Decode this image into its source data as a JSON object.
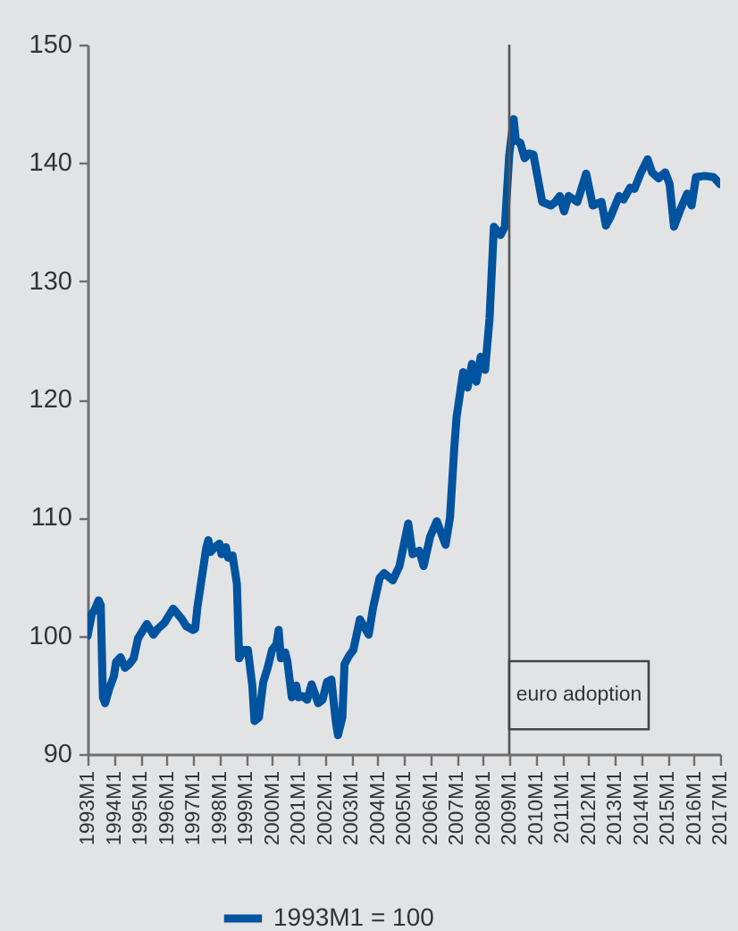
{
  "chart_data": {
    "type": "line",
    "x": [
      "1993-01",
      "1993-03",
      "1993-04",
      "1993-06",
      "1993-07",
      "1993-08",
      "1993-09",
      "1993-11",
      "1994-01",
      "1994-02",
      "1994-04",
      "1994-06",
      "1994-08",
      "1994-10",
      "1994-12",
      "1995-04",
      "1995-07",
      "1995-09",
      "1995-12",
      "1996-04",
      "1996-08",
      "1996-10",
      "1997-01",
      "1997-02",
      "1997-03",
      "1997-05",
      "1997-07",
      "1997-08",
      "1997-09",
      "1997-11",
      "1998-01",
      "1998-02",
      "1998-04",
      "1998-05",
      "1998-07",
      "1998-09",
      "1998-10",
      "1998-12",
      "1999-02",
      "1999-04",
      "1999-05",
      "1999-07",
      "1999-09",
      "1999-11",
      "2000-01",
      "2000-03",
      "2000-04",
      "2000-05",
      "2000-07",
      "2000-08",
      "2000-10",
      "2000-12",
      "2001-01",
      "2001-03",
      "2001-05",
      "2001-07",
      "2001-10",
      "2001-12",
      "2002-02",
      "2002-04",
      "2002-06",
      "2002-07",
      "2002-09",
      "2002-10",
      "2002-12",
      "2003-02",
      "2003-05",
      "2003-09",
      "2003-11",
      "2004-02",
      "2004-04",
      "2004-08",
      "2004-11",
      "2005-03",
      "2005-05",
      "2005-08",
      "2005-10",
      "2006-01",
      "2006-04",
      "2006-08",
      "2006-10",
      "2006-11",
      "2006-12",
      "2007-01",
      "2007-04",
      "2007-06",
      "2007-08",
      "2007-10",
      "2007-12",
      "2008-02",
      "2008-04",
      "2008-06",
      "2008-09",
      "2008-11",
      "2009-01",
      "2009-03",
      "2009-04",
      "2009-06",
      "2009-08",
      "2009-10",
      "2009-12",
      "2010-02",
      "2010-04",
      "2010-08",
      "2010-10",
      "2010-12",
      "2011-02",
      "2011-04",
      "2011-08",
      "2011-12",
      "2012-03",
      "2012-07",
      "2012-09",
      "2012-11",
      "2013-03",
      "2013-05",
      "2013-08",
      "2013-10",
      "2014-01",
      "2014-04",
      "2014-06",
      "2014-09",
      "2014-12",
      "2015-02",
      "2015-04",
      "2015-07",
      "2015-10",
      "2015-12",
      "2016-02",
      "2016-06",
      "2016-10",
      "2017-01"
    ],
    "series": [
      {
        "name": "1993M1 = 100",
        "color": "#00539f",
        "values": [
          100,
          101.9,
          102.1,
          103,
          102.6,
          94.8,
          94.3,
          95.6,
          96.6,
          97.8,
          98.2,
          97.3,
          97.6,
          98.1,
          99.8,
          101,
          100.1,
          100.6,
          101.1,
          102.3,
          101.4,
          100.8,
          100.5,
          100.6,
          102.4,
          104.9,
          107.4,
          108.1,
          107.1,
          107.5,
          107.8,
          106.9,
          107.5,
          106.6,
          106.8,
          104.4,
          98.1,
          98.8,
          98.8,
          95.8,
          92.8,
          93.1,
          96.1,
          97.3,
          98.8,
          99.3,
          100.5,
          98.1,
          98.6,
          97.8,
          94.8,
          95.8,
          94.8,
          94.9,
          94.6,
          95.9,
          94.3,
          94.6,
          96.1,
          96.3,
          92.8,
          91.6,
          93.1,
          97.6,
          98.3,
          98.8,
          101.4,
          100.1,
          102.4,
          104.9,
          105.3,
          104.7,
          105.9,
          109.5,
          106.9,
          107.2,
          105.9,
          108.4,
          109.7,
          107.7,
          110,
          113,
          116,
          118.5,
          122.3,
          121,
          123,
          121.5,
          123.6,
          122.5,
          126.8,
          134.6,
          133.9,
          134.6,
          140.7,
          143.7,
          141.9,
          141.7,
          140.4,
          140.8,
          140.7,
          138.7,
          136.7,
          136.4,
          136.7,
          137.2,
          135.9,
          137.2,
          136.7,
          139.1,
          136.4,
          136.7,
          134.7,
          135.4,
          137.2,
          136.9,
          137.9,
          137.8,
          139.2,
          140.3,
          139.2,
          138.7,
          139.2,
          138.2,
          134.6,
          136.1,
          137.4,
          136.4,
          138.8,
          138.9,
          138.8,
          138.2
        ]
      }
    ],
    "xlim": [
      "1993-01",
      "2017-01"
    ],
    "xticks": [
      {
        "value": "1993-01",
        "label": "1993M1"
      },
      {
        "value": "1994-01",
        "label": "1994M1"
      },
      {
        "value": "1995-01",
        "label": "1995M1"
      },
      {
        "value": "1996-01",
        "label": "1996M1"
      },
      {
        "value": "1997-01",
        "label": "1997M1"
      },
      {
        "value": "1998-01",
        "label": "1998M1"
      },
      {
        "value": "1999-01",
        "label": "1999M1"
      },
      {
        "value": "2000-01",
        "label": "2000M1"
      },
      {
        "value": "2001-01",
        "label": "2001M1"
      },
      {
        "value": "2002-01",
        "label": "2002M1"
      },
      {
        "value": "2003-01",
        "label": "2003M1"
      },
      {
        "value": "2004-01",
        "label": "2004M1"
      },
      {
        "value": "2005-01",
        "label": "2005M1"
      },
      {
        "value": "2006-01",
        "label": "2006M1"
      },
      {
        "value": "2007-01",
        "label": "2007M1"
      },
      {
        "value": "2008-01",
        "label": "2008M1"
      },
      {
        "value": "2009-01",
        "label": "2009M1"
      },
      {
        "value": "2010-01",
        "label": "2010M1"
      },
      {
        "value": "2011-01",
        "label": "2011M1"
      },
      {
        "value": "2012-01",
        "label": "2012M1"
      },
      {
        "value": "2013-01",
        "label": "2013M1"
      },
      {
        "value": "2014-01",
        "label": "2014M1"
      },
      {
        "value": "2015-01",
        "label": "2015M1"
      },
      {
        "value": "2016-01",
        "label": "2016M1"
      },
      {
        "value": "2017-01",
        "label": "2017M1"
      }
    ],
    "ylim": [
      90,
      150
    ],
    "yticks": [
      90,
      100,
      110,
      120,
      130,
      140,
      150
    ],
    "ref_lines": [
      {
        "axis": "x",
        "value": "2009-01",
        "label": "euro adoption"
      }
    ],
    "grid": false,
    "legend": "bottom"
  }
}
